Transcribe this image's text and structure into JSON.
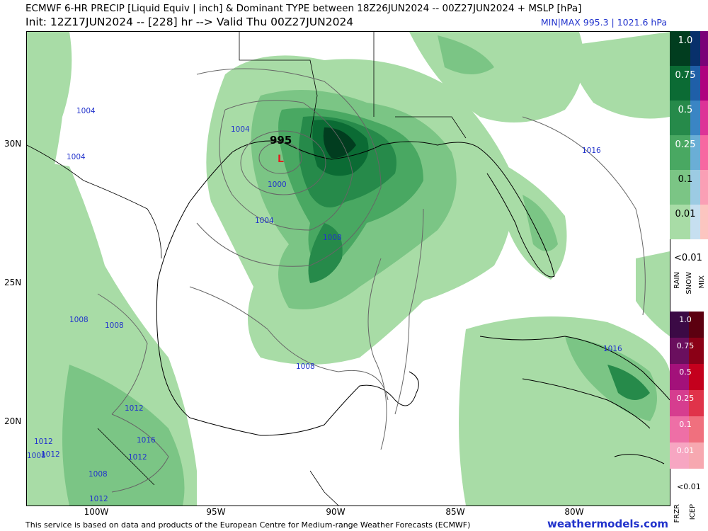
{
  "header": {
    "line1": "ECMWF 6-HR PRECIP [Liquid Equiv | inch] & Dominant TYPE between 18Z26JUN2024 -- 00Z27JUN2024 + MSLP [hPa]",
    "line2": "Init: 12Z17JUN2024 -- [228] hr --> Valid Thu 00Z27JUN2024",
    "minmax": "MIN|MAX 995.3 | 1021.6 hPa"
  },
  "map": {
    "low_value": "995",
    "low_symbol": "L",
    "isobar_labels": [
      "1004",
      "1004",
      "1004",
      "1000",
      "1004",
      "1008",
      "1008",
      "1008",
      "1008",
      "1012",
      "1012",
      "1012",
      "1016",
      "1012",
      "1008",
      "1008",
      "1012",
      "1016",
      "1016"
    ],
    "lat_labels": [
      "30N",
      "25N",
      "20N"
    ],
    "lon_labels": [
      "100W",
      "95W",
      "90W",
      "85W",
      "80W"
    ]
  },
  "legend": {
    "rain_levels": [
      "1.0",
      "0.75",
      "0.5",
      "0.25",
      "0.1",
      "0.01"
    ],
    "lt_label": "<0.01",
    "type_labels": [
      "RAIN",
      "SNOW",
      "MIX"
    ],
    "frzr_levels": [
      "1.0",
      "0.75",
      "0.5",
      "0.25",
      "0.1",
      "0.01"
    ],
    "lt_label2": "<0.01",
    "type_labels2": [
      "FRZR",
      "ICEP"
    ],
    "colors": {
      "rain": [
        "#013d1f",
        "#0b6b34",
        "#268a4a",
        "#49a862",
        "#7bc585",
        "#a8dca6"
      ],
      "snow": [
        "#08306b",
        "#1f5fa8",
        "#3a85c4",
        "#6aaed6",
        "#9ccbe3",
        "#c6dff0"
      ],
      "mix": [
        "#7a0177",
        "#ae017e",
        "#dd3497",
        "#f768a1",
        "#fa9fb5",
        "#fcc5c0"
      ],
      "frzr": [
        "#3b0a45",
        "#6a0f5e",
        "#a3117a",
        "#d63d8f",
        "#ee6fa6",
        "#f7a6c2"
      ],
      "icep": [
        "#5c0010",
        "#8b0016",
        "#c4001d",
        "#e0334a",
        "#f0707e",
        "#f7a8b0"
      ]
    }
  },
  "footer": {
    "credit": "This service is based on data and products of the European Centre for Medium-range Weather Forecasts (ECMWF)",
    "site": "weathermodels.com"
  }
}
